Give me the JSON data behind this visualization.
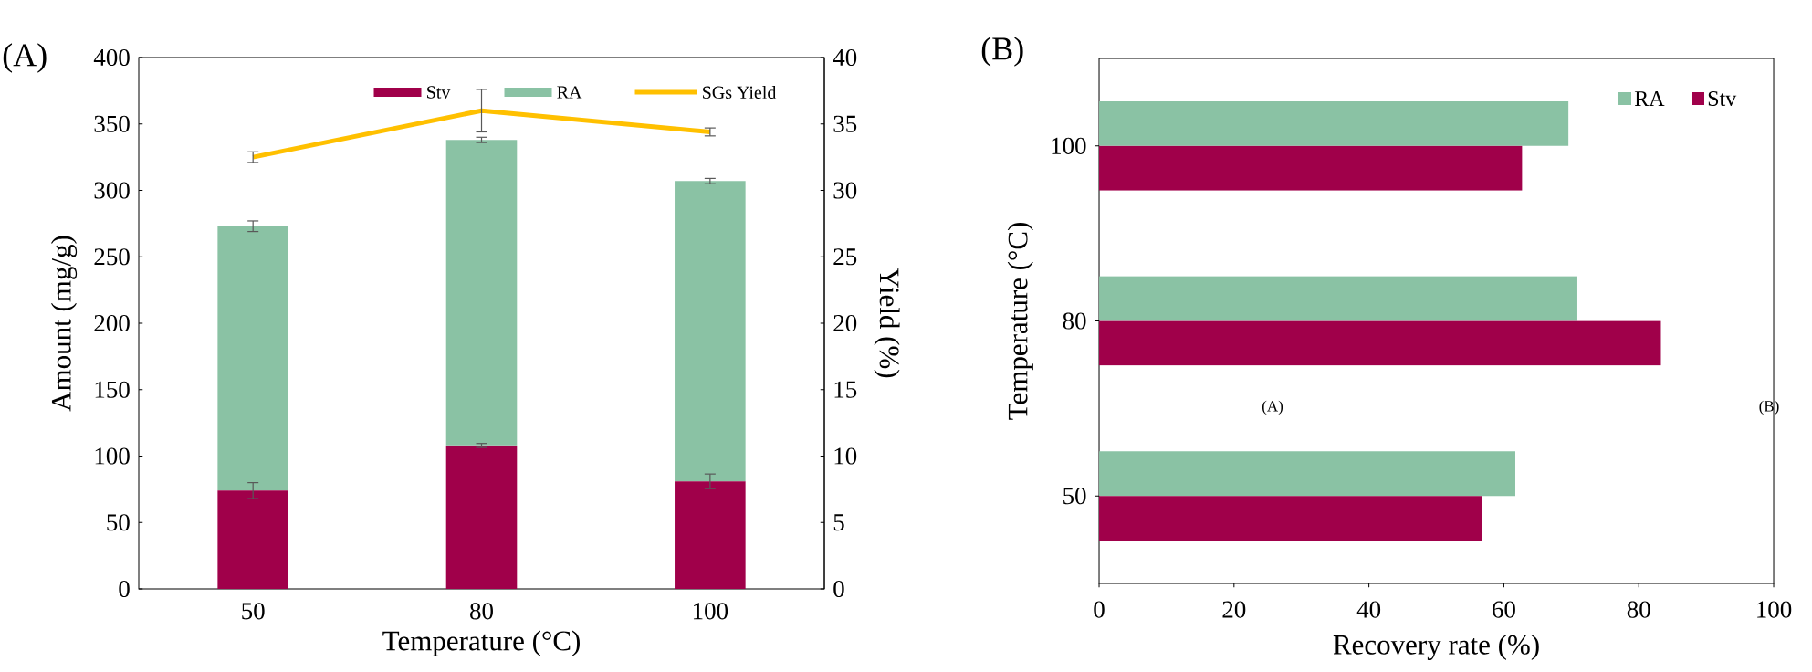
{
  "chart_data": [
    {
      "type": "bar",
      "title": "(A)",
      "categories": [
        "50",
        "80",
        "100"
      ],
      "xlabel": "Temperature (°C)",
      "ylabel": "Amount (mg/g)",
      "y2label": "Yield (%)",
      "stacked": true,
      "ylim": [
        0,
        400
      ],
      "yticks": [
        0,
        50,
        100,
        150,
        200,
        250,
        300,
        350,
        400
      ],
      "y2lim": [
        0,
        40
      ],
      "y2ticks": [
        0,
        5,
        10,
        15,
        20,
        25,
        30,
        35,
        40
      ],
      "legend": "top",
      "series": [
        {
          "name": "Stv",
          "color": "#a0004a",
          "values": [
            74,
            108,
            81
          ],
          "errors": [
            6,
            1.5,
            5.5
          ]
        },
        {
          "name": "RA",
          "color": "#8ac2a4",
          "values": [
            199,
            230,
            226
          ],
          "errors": [
            4,
            2,
            2
          ]
        },
        {
          "name": "SGs Yield",
          "type": "line",
          "axis": "y2",
          "color": "#ffc000",
          "values": [
            32.5,
            36.0,
            34.4
          ],
          "errors": [
            0.4,
            1.6,
            0.3
          ]
        }
      ]
    },
    {
      "type": "bar",
      "orientation": "horizontal",
      "title": "(B)",
      "categories": [
        "100",
        "80",
        "50"
      ],
      "xlabel": "Recovery rate (%)",
      "ylabel": "Temperature (°C)",
      "xlim": [
        0,
        100
      ],
      "xticks": [
        0,
        20,
        40,
        60,
        80,
        100
      ],
      "legend": "top right",
      "annotations": [
        "(A)",
        "(B)"
      ],
      "series": [
        {
          "name": "RA",
          "color": "#8ac2a4",
          "values": [
            69.6,
            70.9,
            61.7
          ]
        },
        {
          "name": "Stv",
          "color": "#a0004a",
          "values": [
            62.7,
            83.3,
            56.8
          ]
        }
      ]
    }
  ]
}
